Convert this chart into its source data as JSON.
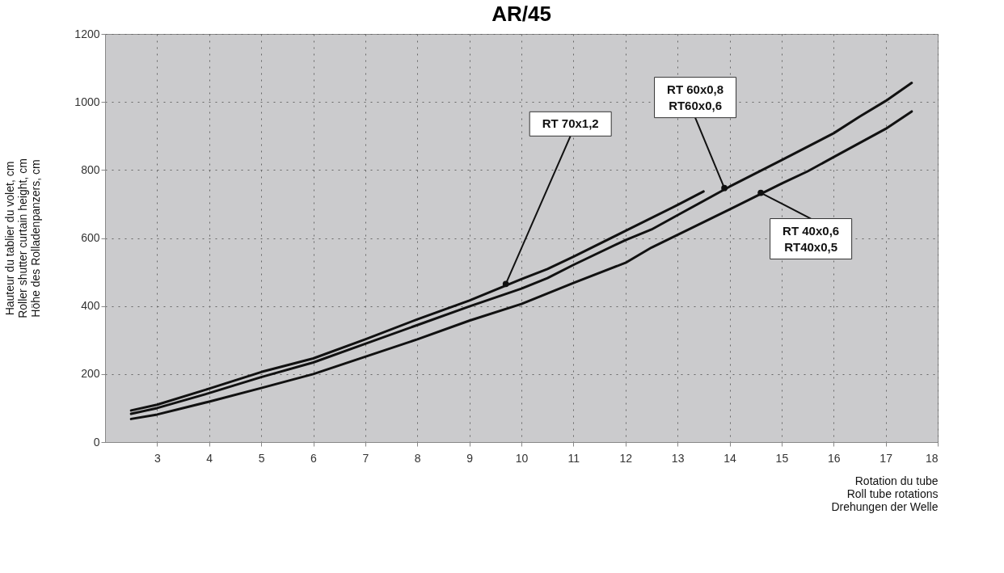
{
  "chart_data": {
    "type": "line",
    "title": "AR/45",
    "xlabel": "Rotation du tube\nRoll tube rotations\nDrehungen der Welle",
    "ylabel": "Hauteur du tablier du volet, cm\nRoller shutter curtain height, cm\nHöhe des Rolladenpanzers, cm",
    "xlim": [
      2,
      18
    ],
    "xticks": [
      3,
      4,
      5,
      6,
      7,
      8,
      9,
      10,
      11,
      12,
      13,
      14,
      15,
      16,
      17,
      18
    ],
    "ylim": [
      0,
      1200
    ],
    "yticks": [
      0,
      200,
      400,
      600,
      800,
      1000,
      1200
    ],
    "grid": true,
    "legend": false,
    "marker": "none",
    "line_style": "solid",
    "series": [
      {
        "color": "#111111",
        "x": [
          2.5,
          3,
          4,
          5,
          6,
          7,
          8,
          9,
          10,
          10.5,
          11,
          12,
          13,
          13.5
        ],
        "values": [
          93,
          110,
          157,
          206,
          246,
          302,
          361,
          416,
          479,
          509,
          545,
          621,
          697,
          737
        ]
      },
      {
        "color": "#111111",
        "x": [
          2.5,
          3,
          4,
          5,
          6,
          7,
          8,
          9,
          10,
          10.5,
          11,
          12,
          12.5,
          13,
          14,
          15,
          16,
          16.5,
          17,
          17.5
        ],
        "values": [
          83,
          100,
          144,
          191,
          234,
          289,
          344,
          399,
          451,
          482,
          521,
          594,
          625,
          667,
          751,
          829,
          908,
          957,
          1003,
          1056
        ]
      },
      {
        "color": "#111111",
        "x": [
          2.5,
          3,
          4,
          5,
          6,
          7,
          8,
          9,
          10,
          10.5,
          11,
          12,
          12.5,
          13,
          14,
          15,
          15.5,
          16,
          17,
          17.5
        ],
        "values": [
          68,
          81,
          119,
          159,
          200,
          251,
          302,
          357,
          406,
          437,
          468,
          527,
          572,
          609,
          684,
          760,
          796,
          838,
          921,
          972
        ]
      }
    ],
    "annotations": [
      {
        "text": "RT 70x1,2",
        "x": 9.7,
        "y": 465
      },
      {
        "text": "RT 60x0,8\nRT60x0,6",
        "x": 13.9,
        "y": 747
      },
      {
        "text": "RT 40x0,6\nRT40x0,5",
        "x": 14.6,
        "y": 733
      }
    ]
  }
}
